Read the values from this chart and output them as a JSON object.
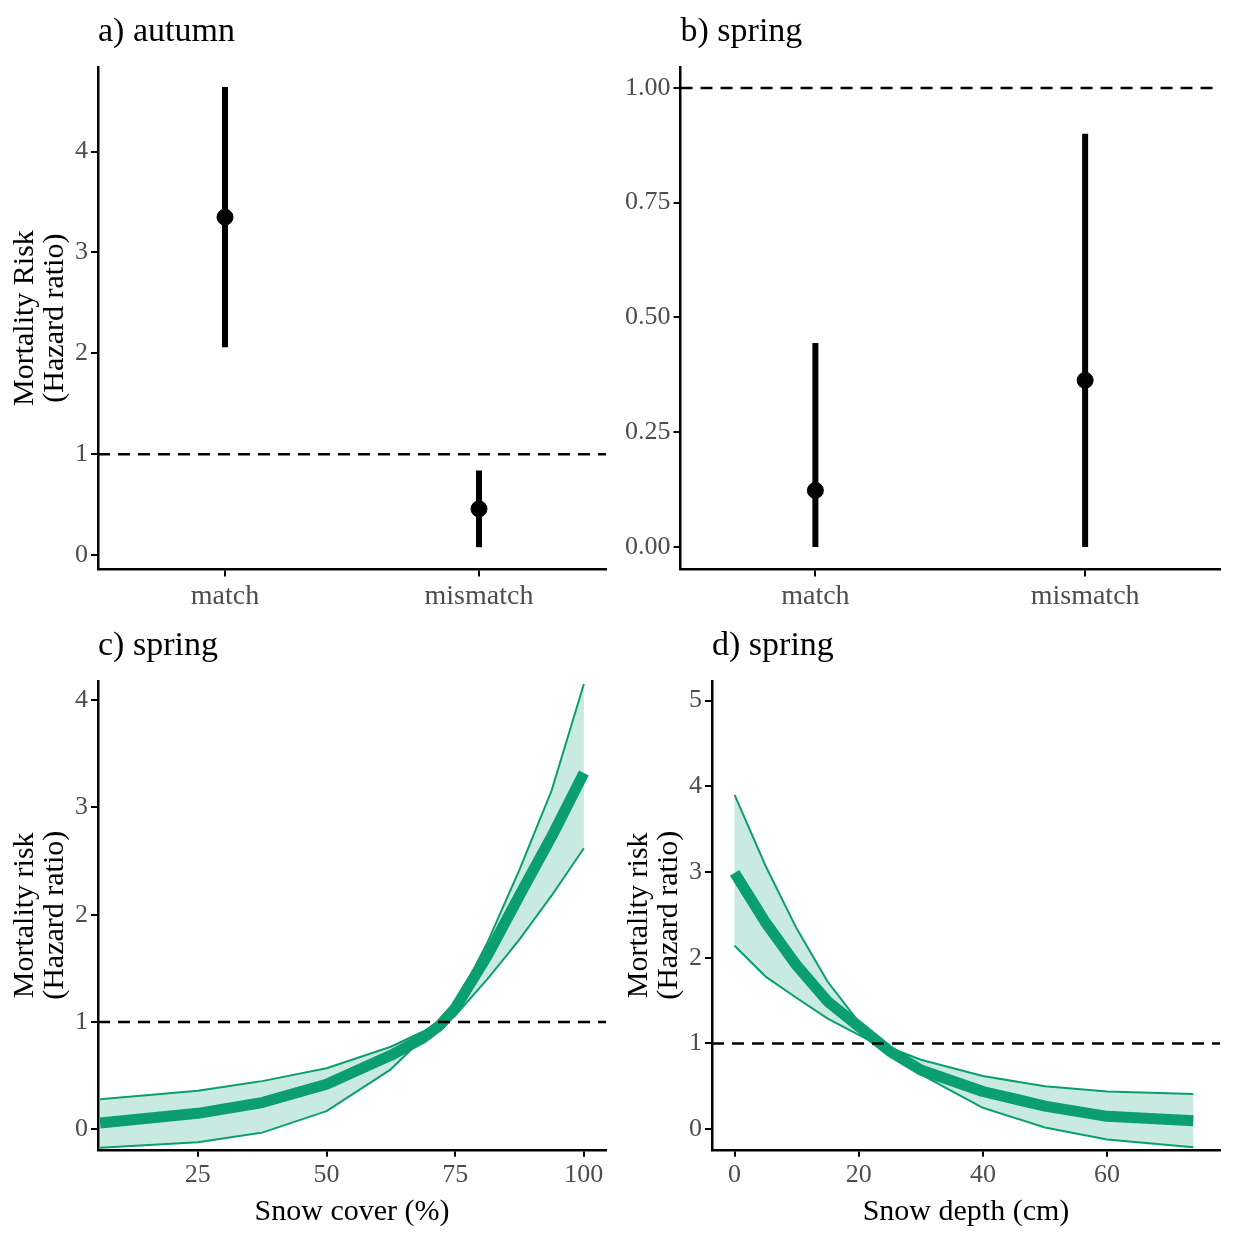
{
  "chart_data": [
    {
      "type": "scatter",
      "title": "a) autumn",
      "ylabel": "Mortality Risk\n(Hazard ratio)",
      "categories": [
        "match",
        "mismatch"
      ],
      "values": [
        3.35,
        0.46
      ],
      "errors": [
        [
          2.06,
          4.64
        ],
        [
          0.08,
          0.84
        ]
      ],
      "color": "#000000",
      "marker": "circle",
      "ylim": [
        -0.14,
        4.84
      ],
      "yticks": [
        0,
        1,
        2,
        3,
        4
      ],
      "ref_lines": [
        {
          "axis": "y",
          "value": 1,
          "line_style": "dashed",
          "color": "#000000"
        }
      ],
      "grid": false,
      "legend": false
    },
    {
      "type": "scatter",
      "title": "b) spring",
      "categories": [
        "match",
        "mismatch"
      ],
      "values": [
        0.123,
        0.363
      ],
      "errors": [
        [
          0,
          0.444
        ],
        [
          0,
          0.9
        ]
      ],
      "color": "#000000",
      "marker": "circle",
      "ylim": [
        -0.049,
        1.046
      ],
      "yticks": [
        {
          "value": 0,
          "label": "0.00"
        },
        {
          "value": 0.25,
          "label": "0.25"
        },
        {
          "value": 0.5,
          "label": "0.50"
        },
        {
          "value": 0.75,
          "label": "0.75"
        },
        {
          "value": 1,
          "label": "1.00"
        }
      ],
      "ref_lines": [
        {
          "axis": "y",
          "value": 1,
          "line_style": "dashed",
          "color": "#000000"
        }
      ],
      "grid": false,
      "legend": false
    },
    {
      "type": "line",
      "title": "c) spring",
      "xlabel": "Snow cover (%)",
      "ylabel": "Mortality risk\n(Hazard ratio)",
      "x": [
        6,
        25,
        37.5,
        50,
        62.5,
        68.7,
        72,
        75,
        81.25,
        87.5,
        93.75,
        100
      ],
      "series": [
        {
          "color": "#0a9e70",
          "values": [
            0.06,
            0.15,
            0.25,
            0.42,
            0.69,
            0.85,
            0.97,
            1.13,
            1.62,
            2.18,
            2.73,
            3.32
          ],
          "lower": [
            -0.17,
            -0.12,
            -0.03,
            0.17,
            0.56,
            0.85,
            0.95,
            1.06,
            1.4,
            1.77,
            2.18,
            2.62
          ],
          "upper": [
            0.28,
            0.36,
            0.45,
            0.57,
            0.77,
            0.91,
            1.0,
            1.16,
            1.74,
            2.42,
            3.16,
            4.15
          ]
        },
        {
          "color": "#0a9e70",
          "values": [
            0.28,
            0.36,
            0.45,
            0.57,
            0.77,
            0.91,
            1.0,
            1.16,
            1.74,
            2.42,
            3.16,
            4.15
          ]
        },
        {
          "color": "#0a9e70",
          "values": [
            -0.17,
            -0.12,
            -0.03,
            0.17,
            0.56,
            0.85,
            0.95,
            1.06,
            1.4,
            1.77,
            2.18,
            2.62
          ]
        }
      ],
      "xlim": [
        5.6,
        104.3
      ],
      "xticks": [
        25,
        50,
        75,
        100
      ],
      "ylim": [
        -0.19,
        4.18
      ],
      "yticks": [
        0,
        1,
        2,
        3,
        4
      ],
      "ref_lines": [
        {
          "axis": "y",
          "value": 1,
          "line_style": "dashed",
          "color": "#000000"
        }
      ],
      "grid": false,
      "legend": false
    },
    {
      "type": "line",
      "title": "d) spring",
      "xlabel": "Snow depth (cm)",
      "ylabel": "Mortality risk\n(Hazard ratio)",
      "x": [
        0,
        5,
        10,
        15,
        20,
        25,
        30,
        40,
        50,
        60,
        73.9
      ],
      "series": [
        {
          "color": "#0a9e70",
          "values": [
            2.99,
            2.41,
            1.91,
            1.49,
            1.2,
            0.91,
            0.69,
            0.44,
            0.27,
            0.15,
            0.1
          ],
          "lower": [
            2.14,
            1.78,
            1.53,
            1.29,
            1.1,
            0.91,
            0.64,
            0.25,
            0.02,
            -0.12,
            -0.21
          ],
          "upper": [
            3.9,
            3.07,
            2.34,
            1.72,
            1.25,
            0.95,
            0.81,
            0.62,
            0.5,
            0.44,
            0.41
          ]
        },
        {
          "color": "#0a9e70",
          "values": [
            3.9,
            3.07,
            2.34,
            1.72,
            1.25,
            0.95,
            0.81,
            0.62,
            0.5,
            0.44,
            0.41
          ]
        },
        {
          "color": "#0a9e70",
          "values": [
            2.14,
            1.78,
            1.53,
            1.29,
            1.1,
            0.91,
            0.64,
            0.25,
            0.02,
            -0.12,
            -0.21
          ]
        }
      ],
      "xlim": [
        -3.64,
        78.2
      ],
      "xticks": [
        0,
        20,
        40,
        60
      ],
      "ylim": [
        -0.24,
        5.23
      ],
      "yticks": [
        0,
        1,
        2,
        3,
        4,
        5
      ],
      "ref_lines": [
        {
          "axis": "y",
          "value": 1,
          "line_style": "dashed",
          "color": "#000000"
        }
      ],
      "grid": false,
      "legend": false
    }
  ]
}
